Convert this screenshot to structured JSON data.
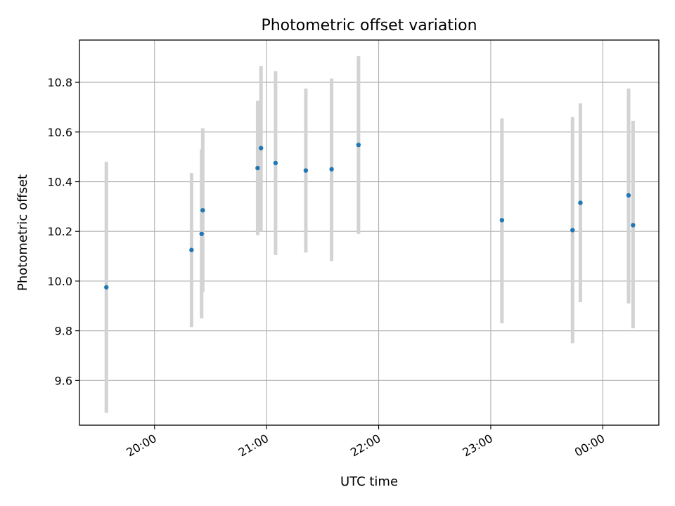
{
  "chart_data": {
    "type": "scatter",
    "title": "Photometric offset variation",
    "xlabel": "UTC time",
    "ylabel": "Photometric offset",
    "x_ticks": [
      {
        "value": 20.0,
        "label": "20:00"
      },
      {
        "value": 21.0,
        "label": "21:00"
      },
      {
        "value": 22.0,
        "label": "22:00"
      },
      {
        "value": 23.0,
        "label": "23:00"
      },
      {
        "value": 24.0,
        "label": "00:00"
      }
    ],
    "y_ticks": [
      {
        "value": 9.6,
        "label": "9.6"
      },
      {
        "value": 9.8,
        "label": "9.8"
      },
      {
        "value": 10.0,
        "label": "10.0"
      },
      {
        "value": 10.2,
        "label": "10.2"
      },
      {
        "value": 10.4,
        "label": "10.4"
      },
      {
        "value": 10.6,
        "label": "10.6"
      },
      {
        "value": 10.8,
        "label": "10.8"
      }
    ],
    "xlim": [
      19.33,
      24.5
    ],
    "ylim": [
      9.42,
      10.97
    ],
    "grid": true,
    "colors": {
      "point": "#1f77b4",
      "errorbar": "#d3d3d3",
      "grid": "#b0b0b0"
    },
    "series": [
      {
        "points": [
          {
            "x": 19.57,
            "y": 9.975,
            "yerr_low": 9.47,
            "yerr_high": 10.48
          },
          {
            "x": 20.33,
            "y": 10.125,
            "yerr_low": 9.815,
            "yerr_high": 10.435
          },
          {
            "x": 20.42,
            "y": 10.19,
            "yerr_low": 9.85,
            "yerr_high": 10.53
          },
          {
            "x": 20.43,
            "y": 10.285,
            "yerr_low": 9.955,
            "yerr_high": 10.615
          },
          {
            "x": 20.92,
            "y": 10.455,
            "yerr_low": 10.185,
            "yerr_high": 10.725
          },
          {
            "x": 20.95,
            "y": 10.535,
            "yerr_low": 10.2,
            "yerr_high": 10.865
          },
          {
            "x": 21.08,
            "y": 10.475,
            "yerr_low": 10.105,
            "yerr_high": 10.845
          },
          {
            "x": 21.35,
            "y": 10.445,
            "yerr_low": 10.115,
            "yerr_high": 10.775
          },
          {
            "x": 21.58,
            "y": 10.45,
            "yerr_low": 10.08,
            "yerr_high": 10.815
          },
          {
            "x": 21.82,
            "y": 10.548,
            "yerr_low": 10.19,
            "yerr_high": 10.905
          },
          {
            "x": 23.1,
            "y": 10.245,
            "yerr_low": 9.83,
            "yerr_high": 10.655
          },
          {
            "x": 23.73,
            "y": 10.205,
            "yerr_low": 9.75,
            "yerr_high": 10.66
          },
          {
            "x": 23.8,
            "y": 10.315,
            "yerr_low": 9.915,
            "yerr_high": 10.715
          },
          {
            "x": 24.23,
            "y": 10.345,
            "yerr_low": 9.91,
            "yerr_high": 10.775
          },
          {
            "x": 24.27,
            "y": 10.225,
            "yerr_low": 9.81,
            "yerr_high": 10.645
          }
        ]
      }
    ]
  }
}
